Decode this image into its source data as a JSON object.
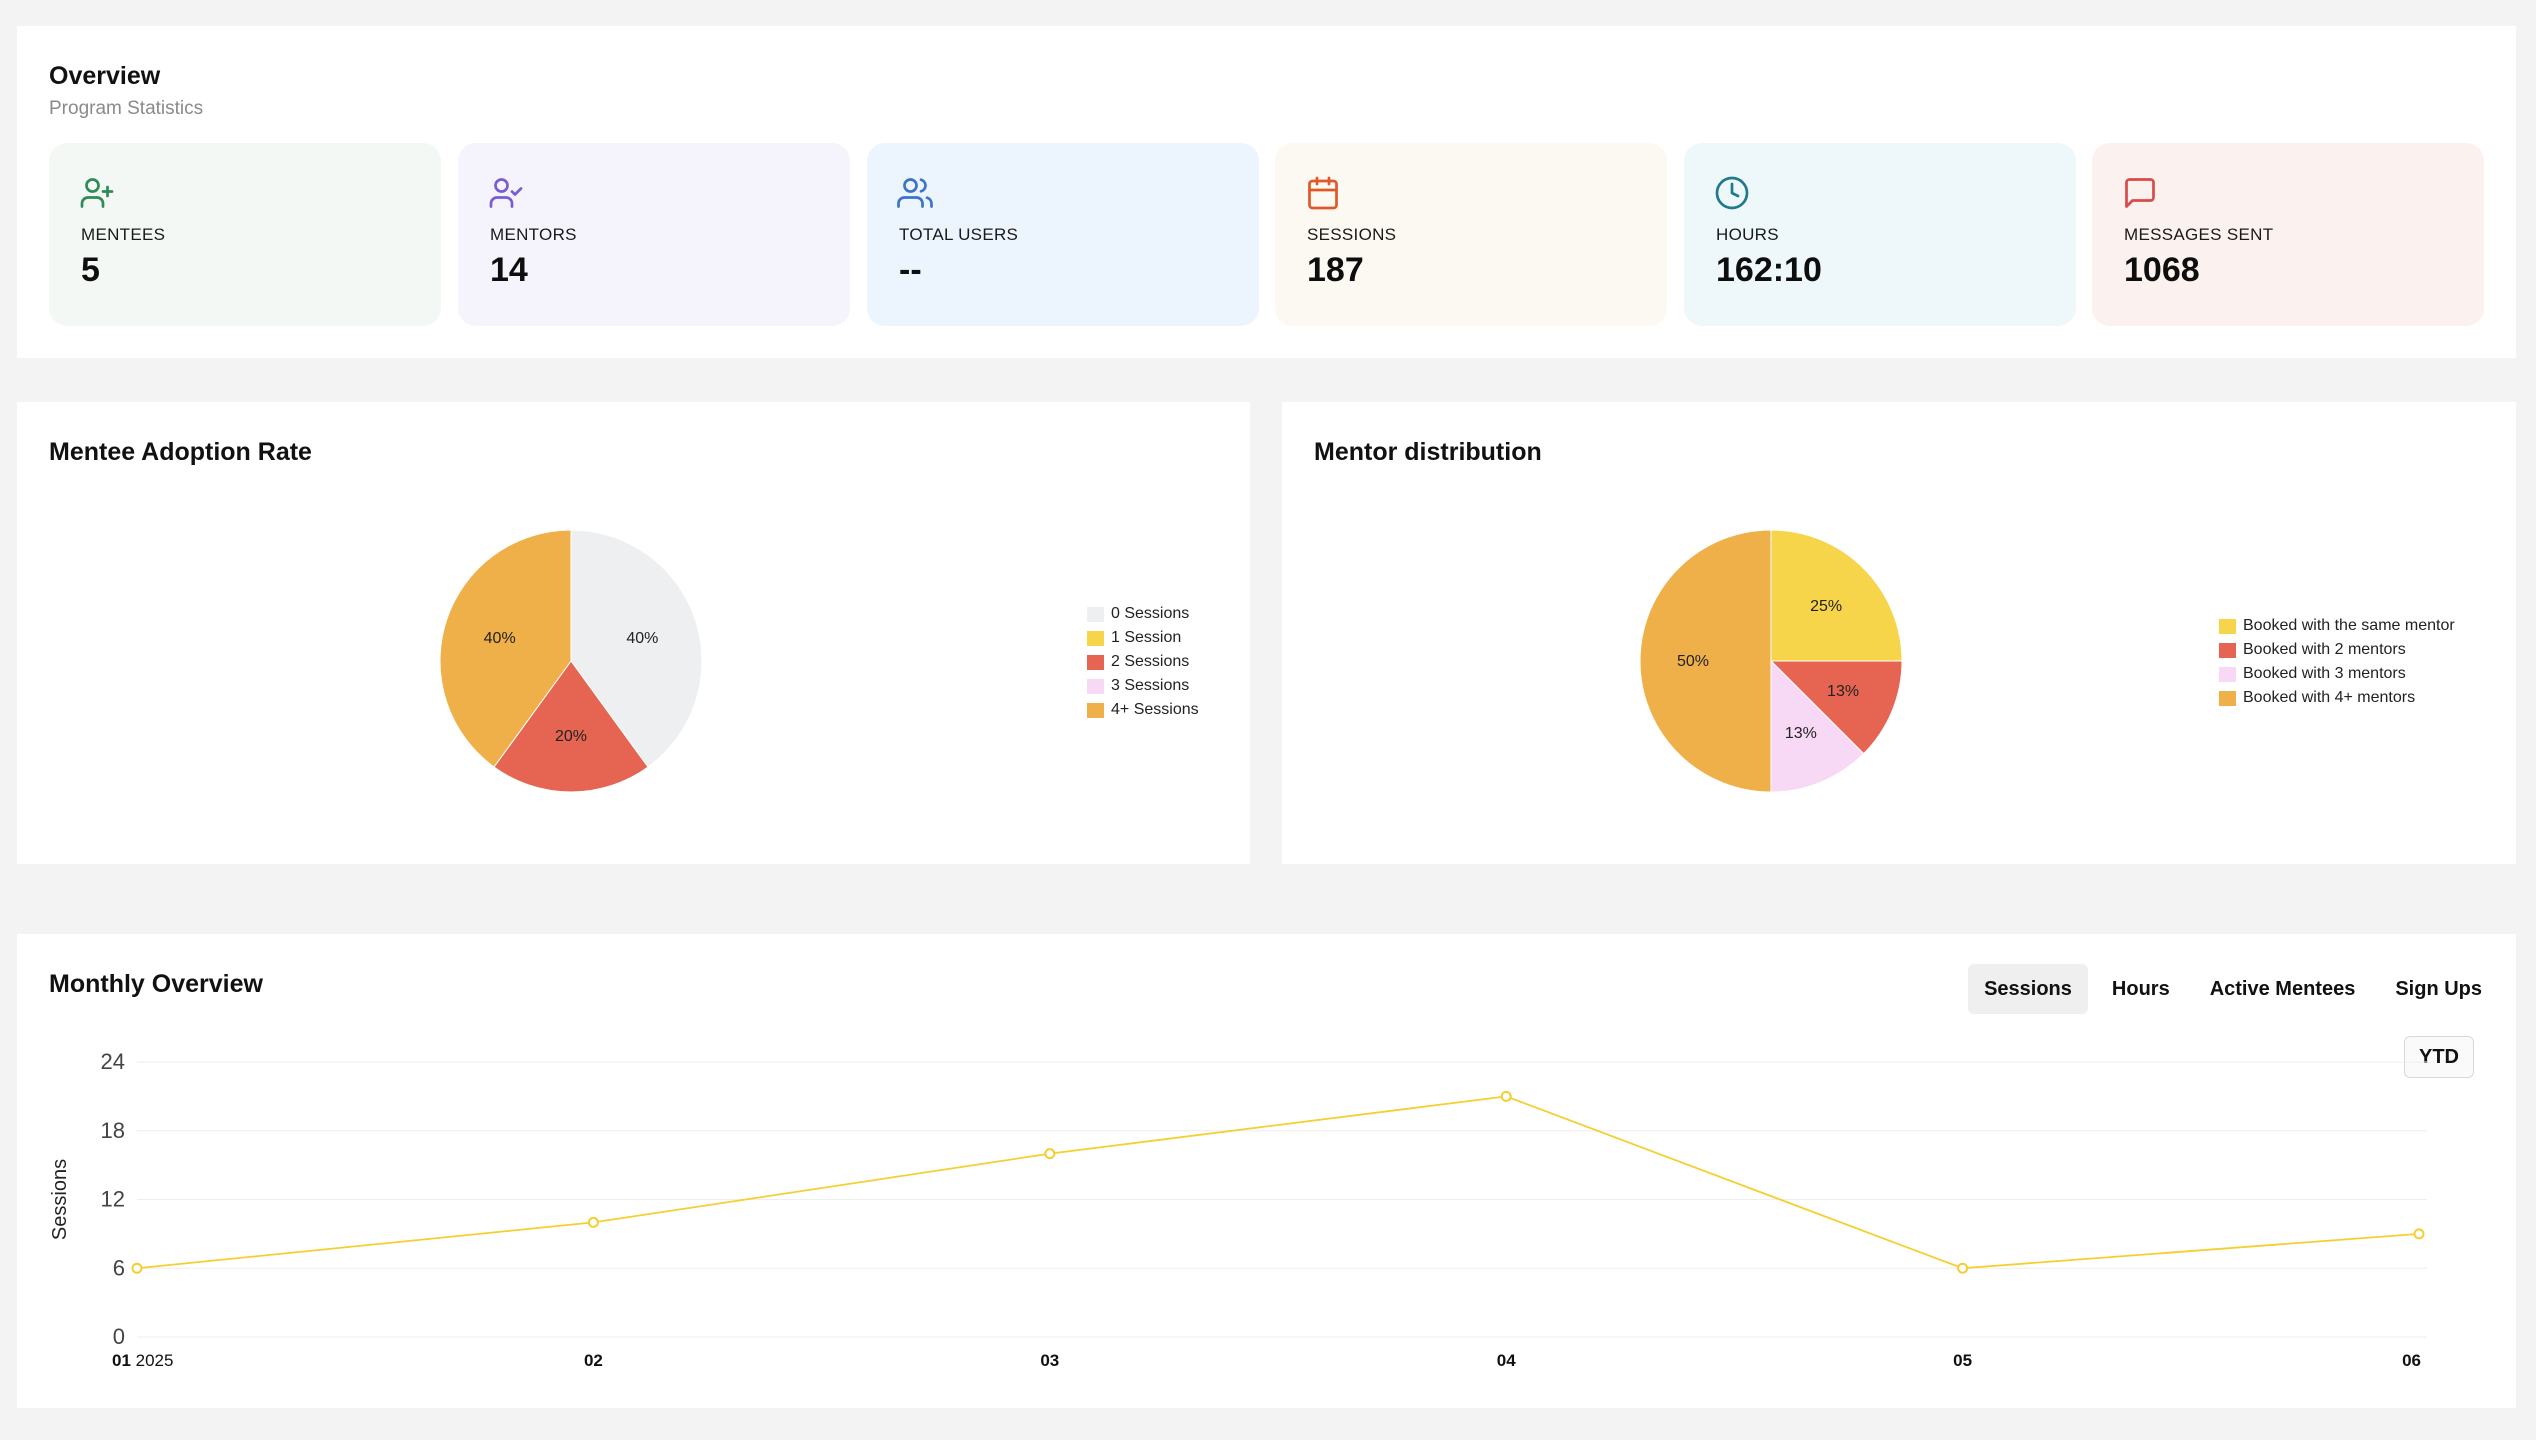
{
  "overview": {
    "title": "Overview",
    "subtitle": "Program Statistics",
    "stats": [
      {
        "label": "MENTEES",
        "value": "5",
        "icon": "user-plus-icon",
        "color": "#2e8b57",
        "bg": "#f3f8f5"
      },
      {
        "label": "MENTORS",
        "value": "14",
        "icon": "user-check-icon",
        "color": "#7a5cd6",
        "bg": "#f5f3fc"
      },
      {
        "label": "TOTAL USERS",
        "value": "--",
        "icon": "users-icon",
        "color": "#3b74c9",
        "bg": "#ecf4fd"
      },
      {
        "label": "SESSIONS",
        "value": "187",
        "icon": "calendar-icon",
        "color": "#e0582a",
        "bg": "#fcf8f2"
      },
      {
        "label": "HOURS",
        "value": "162:10",
        "icon": "clock-icon",
        "color": "#1f7a8c",
        "bg": "#eef7f9"
      },
      {
        "label": "MESSAGES SENT",
        "value": "1068",
        "icon": "message-icon",
        "color": "#d94a4a",
        "bg": "#fbf1ef"
      }
    ]
  },
  "adoption": {
    "title": "Mentee Adoption Rate",
    "legend": [
      "0 Sessions",
      "1 Session",
      "2 Sessions",
      "3 Sessions",
      "4+ Sessions"
    ]
  },
  "mentor_distribution": {
    "title": "Mentor distribution",
    "legend": [
      "Booked with the same mentor",
      "Booked with 2 mentors",
      "Booked with 3 mentors",
      "Booked with 4+ mentors"
    ]
  },
  "monthly": {
    "title": "Monthly Overview",
    "tabs": [
      "Sessions",
      "Hours",
      "Active Mentees",
      "Sign Ups"
    ],
    "active_tab": "Sessions",
    "ytd_label": "YTD"
  },
  "colors": {
    "gray": "#eeeff0",
    "yellow": "#f7d54a",
    "red": "#e66552",
    "pink": "#f7d8f5",
    "orange": "#efb049",
    "line": "#f5cf2f"
  },
  "chart_data": [
    {
      "type": "pie",
      "title": "Mentee Adoption Rate",
      "categories": [
        "0 Sessions",
        "1 Session",
        "2 Sessions",
        "3 Sessions",
        "4+ Sessions"
      ],
      "values": [
        40,
        0,
        20,
        0,
        40
      ],
      "labels": [
        "40%",
        "",
        "20%",
        "",
        "40%"
      ],
      "colors": [
        "#eeeff0",
        "#f7d54a",
        "#e66552",
        "#f7d8f5",
        "#efb049"
      ]
    },
    {
      "type": "pie",
      "title": "Mentor distribution",
      "categories": [
        "Booked with the same mentor",
        "Booked with 2 mentors",
        "Booked with 3 mentors",
        "Booked with 4+ mentors"
      ],
      "values": [
        25,
        12.5,
        12.5,
        50
      ],
      "labels": [
        "25%",
        "13%",
        "13%",
        "50%"
      ],
      "colors": [
        "#f7d54a",
        "#e66552",
        "#f7d8f5",
        "#efb049"
      ]
    },
    {
      "type": "line",
      "title": "Monthly Overview",
      "x": [
        "01",
        "02",
        "03",
        "04",
        "05",
        "06"
      ],
      "x_year_label": "2025",
      "series": [
        {
          "name": "Sessions",
          "values": [
            6,
            10,
            16,
            21,
            6,
            9
          ]
        }
      ],
      "ylabel": "Sessions",
      "yticks": [
        0,
        6,
        12,
        18,
        24
      ],
      "ylim": [
        0,
        24
      ]
    }
  ]
}
